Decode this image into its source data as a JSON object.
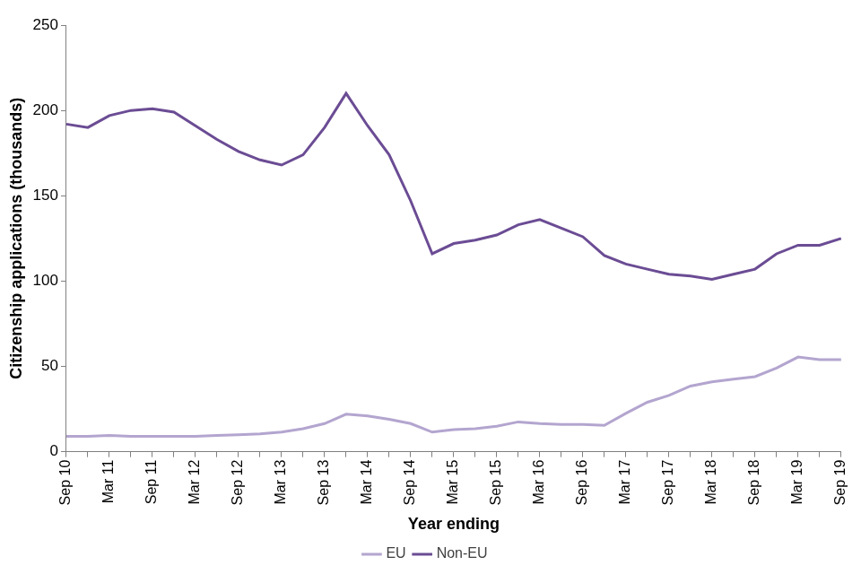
{
  "chart_data": {
    "type": "line",
    "x_label": "Year ending",
    "y_label": "Citizenship applications (thousands)",
    "categories": [
      "Sep 10",
      null,
      "Mar 11",
      null,
      "Sep 11",
      null,
      "Mar 12",
      null,
      "Sep 12",
      null,
      "Mar 13",
      null,
      "Sep 13",
      null,
      "Mar 14",
      null,
      "Sep 14",
      null,
      "Mar 15",
      null,
      "Sep 15",
      null,
      "Mar 16",
      null,
      "Sep 16",
      null,
      "Mar 17",
      null,
      "Sep 17",
      null,
      "Mar 18",
      null,
      "Sep 18",
      null,
      "Mar 19",
      null,
      "Sep 19"
    ],
    "series": [
      {
        "name": "EU",
        "color": "#b3a5cf",
        "values": [
          9,
          9,
          9.5,
          9,
          9,
          9,
          9,
          9.5,
          10,
          10.5,
          11.5,
          13.5,
          16.5,
          22,
          21,
          19,
          16.5,
          11.5,
          13,
          13.5,
          15,
          17.5,
          16.5,
          16,
          16,
          15.5,
          22.5,
          29,
          33,
          38.5,
          41,
          42.5,
          44,
          49,
          55.5,
          54,
          54
        ]
      },
      {
        "name": "Non-EU",
        "color": "#6b4c94",
        "values": [
          192,
          190,
          197,
          200,
          201,
          199,
          191,
          183,
          176,
          171,
          168,
          174,
          190,
          210,
          191,
          174,
          147,
          116,
          122,
          124,
          127,
          133,
          136,
          131,
          126,
          115,
          110,
          107,
          104,
          103,
          101,
          104,
          107,
          116,
          121,
          121,
          125
        ]
      }
    ],
    "ylim": [
      0,
      250
    ],
    "yticks": [
      0,
      50,
      100,
      150,
      200,
      250
    ],
    "grid": false,
    "legend": "bottom"
  }
}
